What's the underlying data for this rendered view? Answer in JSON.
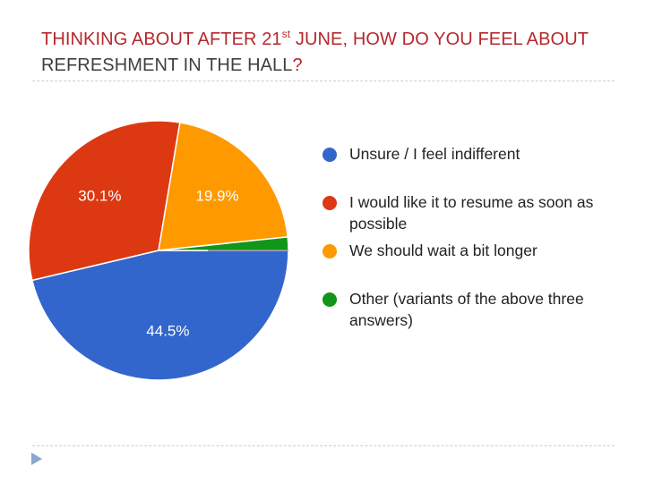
{
  "slide": {
    "title_part1": "THINKING ABOUT AFTER 21",
    "title_sup": "st",
    "title_part2": " JUNE, HOW DO YOU FEEL ABOUT ",
    "title_part3": "REFRESHMENT IN THE HALL",
    "title_part4": "?"
  },
  "chart_data": {
    "type": "pie",
    "title": "",
    "slices": [
      {
        "label": "Unsure / I feel indifferent",
        "value": 44.5,
        "value_label": "44.5%",
        "color": "#3366cc"
      },
      {
        "label": "I would like it to resume as soon as possible",
        "value": 30.1,
        "value_label": "30.1%",
        "color": "#dc3912"
      },
      {
        "label": "We should wait a bit longer",
        "value": 19.9,
        "value_label": "19.9%",
        "color": "#ff9900"
      },
      {
        "label": "Other (variants of the above three answers)",
        "value": 1.6,
        "value_label": "",
        "color": "#109618"
      }
    ],
    "legend_position": "right"
  }
}
